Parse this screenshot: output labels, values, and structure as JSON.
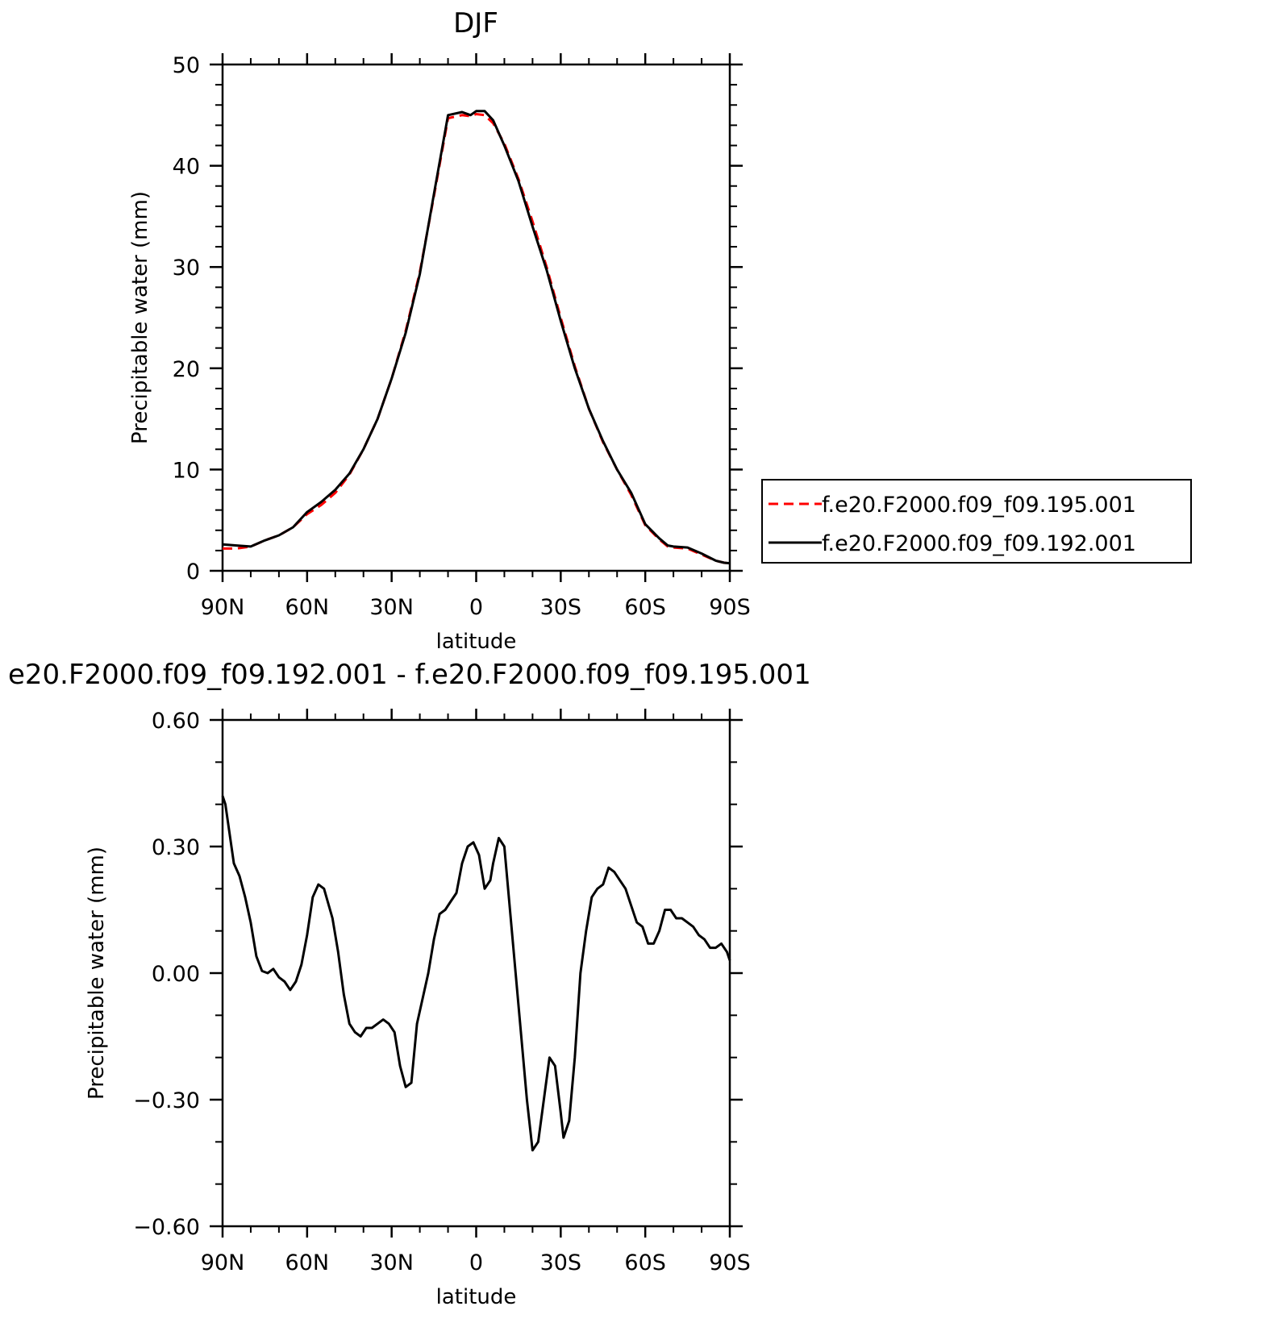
{
  "chart_data": [
    {
      "type": "line",
      "title": "DJF",
      "xlabel": "latitude",
      "ylabel": "Precipitable water (mm)",
      "xlim": [
        90,
        -90
      ],
      "ylim": [
        0,
        50
      ],
      "x_tick_values": [
        90,
        60,
        30,
        0,
        -30,
        -60,
        -90
      ],
      "x_tick_labels": [
        "90N",
        "60N",
        "30N",
        "0",
        "30S",
        "60S",
        "90S"
      ],
      "y_tick_values": [
        0,
        10,
        20,
        30,
        40,
        50
      ],
      "y_tick_labels": [
        "0",
        "10",
        "20",
        "30",
        "40",
        "50"
      ],
      "legend": "right",
      "grid": false,
      "series": [
        {
          "name": "f.e20.F2000.f09_f09.195.001",
          "color": "#ff0000",
          "dash": "dashed",
          "x": [
            90,
            85,
            80,
            75,
            70,
            65,
            60,
            55,
            50,
            45,
            40,
            35,
            30,
            25,
            20,
            15,
            10,
            5,
            2,
            0,
            -3,
            -6,
            -10,
            -15,
            -20,
            -25,
            -30,
            -35,
            -40,
            -45,
            -50,
            -55,
            -60,
            -65,
            -68,
            -70,
            -75,
            -80,
            -85,
            -88,
            -90
          ],
          "y": [
            2.2,
            2.2,
            2.4,
            3.0,
            3.5,
            4.3,
            5.6,
            6.5,
            7.7,
            9.5,
            12.0,
            15.0,
            19.0,
            23.7,
            29.5,
            37.0,
            44.7,
            45.0,
            44.9,
            45.1,
            45.0,
            44.2,
            42.2,
            38.7,
            34.5,
            30.0,
            25.0,
            20.2,
            16.0,
            12.7,
            10.0,
            7.5,
            4.5,
            3.1,
            2.4,
            2.3,
            2.2,
            1.6,
            1.0,
            0.8,
            0.75
          ]
        },
        {
          "name": "f.e20.F2000.f09_f09.192.001",
          "color": "#000000",
          "dash": "solid",
          "x": [
            90,
            85,
            80,
            75,
            70,
            65,
            60,
            55,
            50,
            45,
            40,
            35,
            30,
            25,
            20,
            15,
            10,
            5,
            2,
            0,
            -3,
            -6,
            -10,
            -15,
            -20,
            -25,
            -30,
            -35,
            -40,
            -45,
            -50,
            -55,
            -60,
            -65,
            -68,
            -70,
            -75,
            -80,
            -85,
            -88,
            -90
          ],
          "y": [
            2.6,
            2.5,
            2.4,
            3.0,
            3.5,
            4.3,
            5.8,
            6.8,
            8.0,
            9.6,
            12.0,
            15.0,
            19.0,
            23.5,
            29.3,
            37.2,
            45.0,
            45.3,
            45.0,
            45.4,
            45.4,
            44.5,
            42.0,
            38.5,
            34.0,
            29.7,
            24.7,
            20.0,
            16.0,
            12.8,
            10.0,
            7.7,
            4.6,
            3.2,
            2.5,
            2.4,
            2.3,
            1.7,
            1.0,
            0.8,
            0.75
          ]
        }
      ]
    },
    {
      "type": "line",
      "title": "e20.F2000.f09_f09.192.001 - f.e20.F2000.f09_f09.195.001",
      "xlabel": "latitude",
      "ylabel": "Precipitable water (mm)",
      "xlim": [
        90,
        -90
      ],
      "ylim": [
        -0.6,
        0.6
      ],
      "x_tick_values": [
        90,
        60,
        30,
        0,
        -30,
        -60,
        -90
      ],
      "x_tick_labels": [
        "90N",
        "60N",
        "30N",
        "0",
        "30S",
        "60S",
        "90S"
      ],
      "y_tick_values": [
        0.6,
        0.3,
        0.0,
        -0.3,
        -0.6
      ],
      "y_tick_labels": [
        "0.60",
        "0.30",
        "0.00",
        "−0.30",
        "−0.60"
      ],
      "grid": false,
      "series": [
        {
          "color": "#000000",
          "dash": "solid",
          "x": [
            90,
            89,
            86,
            84,
            82,
            80,
            78,
            76,
            74,
            72,
            70,
            68,
            66,
            64,
            62,
            60,
            58,
            56,
            54,
            51,
            49,
            47,
            45,
            43,
            41,
            39,
            37,
            35,
            33,
            31,
            29,
            27,
            25,
            23,
            21,
            19,
            17,
            15,
            13,
            11,
            9,
            7,
            5,
            3,
            1,
            -1,
            -3,
            -5,
            -6,
            -8,
            -10,
            -12,
            -14,
            -16,
            -18,
            -20,
            -22,
            -24,
            -26,
            -28,
            -30,
            -31,
            -33,
            -35,
            -37,
            -39,
            -41,
            -43,
            -45,
            -47,
            -49,
            -51,
            -53,
            -55,
            -57,
            -59,
            -61,
            -63,
            -65,
            -67,
            -69,
            -71,
            -73,
            -75,
            -77,
            -79,
            -81,
            -83,
            -85,
            -87,
            -89,
            -90
          ],
          "y": [
            0.42,
            0.4,
            0.26,
            0.23,
            0.18,
            0.12,
            0.04,
            0.005,
            0.0,
            0.01,
            -0.01,
            -0.02,
            -0.04,
            -0.02,
            0.02,
            0.09,
            0.18,
            0.21,
            0.2,
            0.13,
            0.05,
            -0.05,
            -0.12,
            -0.14,
            -0.15,
            -0.13,
            -0.13,
            -0.12,
            -0.11,
            -0.12,
            -0.14,
            -0.22,
            -0.27,
            -0.26,
            -0.12,
            -0.06,
            0.0,
            0.08,
            0.14,
            0.15,
            0.17,
            0.19,
            0.26,
            0.3,
            0.31,
            0.28,
            0.2,
            0.22,
            0.26,
            0.32,
            0.3,
            0.15,
            0.0,
            -0.15,
            -0.3,
            -0.42,
            -0.4,
            -0.3,
            -0.2,
            -0.22,
            -0.33,
            -0.39,
            -0.35,
            -0.2,
            0.0,
            0.1,
            0.18,
            0.2,
            0.21,
            0.25,
            0.24,
            0.22,
            0.2,
            0.16,
            0.12,
            0.11,
            0.07,
            0.07,
            0.1,
            0.15,
            0.15,
            0.13,
            0.13,
            0.12,
            0.11,
            0.09,
            0.08,
            0.06,
            0.06,
            0.07,
            0.05,
            0.03
          ]
        }
      ]
    }
  ]
}
